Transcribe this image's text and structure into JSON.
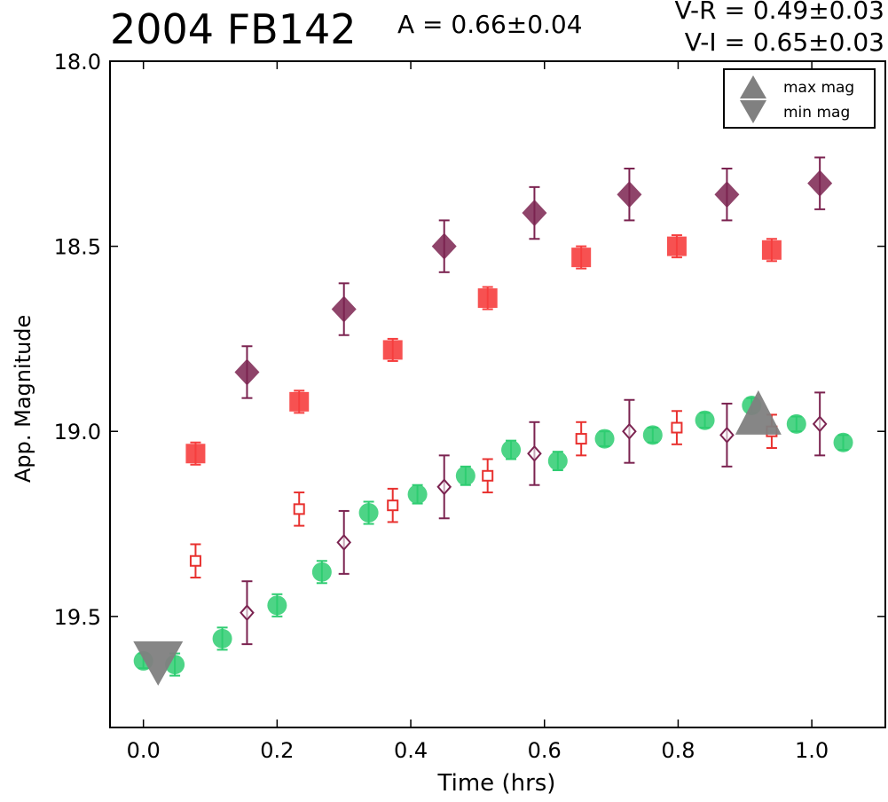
{
  "header": {
    "title": "2004 FB142",
    "amplitude": "A  = 0.66±0.04",
    "color_vr": "V-R = 0.49±0.03",
    "color_vi": "V-I  = 0.65±0.03"
  },
  "legend": {
    "max_label": "max mag",
    "min_label": "min mag",
    "marker_color": "#808080"
  },
  "chart_data": {
    "type": "scatter",
    "title": "2004 FB142",
    "xlabel": "Time (hrs)",
    "ylabel": "App. Magnitude",
    "xlim": [
      -0.05,
      1.11
    ],
    "ylim": [
      19.8,
      18.0
    ],
    "y_inverted": true,
    "xticks": [
      "0.0",
      "0.2",
      "0.4",
      "0.6",
      "0.8",
      "1.0"
    ],
    "yticks": [
      "18.0",
      "18.5",
      "19.0",
      "19.5"
    ],
    "grid": false,
    "legend_placement": "top-right",
    "series": [
      {
        "name": "",
        "marker": "circle-filled",
        "color": "#2ecc71",
        "x": [
          0.0,
          0.047,
          0.118,
          0.2,
          0.267,
          0.337,
          0.41,
          0.482,
          0.55,
          0.62,
          0.69,
          0.762,
          0.84,
          0.91,
          0.977,
          1.047
        ],
        "y": [
          19.62,
          19.63,
          19.56,
          19.47,
          19.38,
          19.22,
          19.17,
          19.12,
          19.05,
          19.08,
          19.02,
          19.01,
          18.97,
          18.93,
          18.98,
          19.03
        ],
        "err": [
          0.02,
          0.03,
          0.03,
          0.03,
          0.03,
          0.03,
          0.025,
          0.025,
          0.025,
          0.025,
          0.02,
          0.02,
          0.02,
          0.02,
          0.02,
          0.02
        ]
      },
      {
        "name": "",
        "marker": "square-open",
        "color": "#e8312f",
        "x": [
          0.078,
          0.233,
          0.373,
          0.515,
          0.655,
          0.798,
          0.94
        ],
        "y": [
          19.35,
          19.21,
          19.2,
          19.12,
          19.02,
          18.99,
          19.0
        ],
        "err": [
          0.045,
          0.045,
          0.045,
          0.045,
          0.045,
          0.045,
          0.045
        ]
      },
      {
        "name": "",
        "marker": "diamond-open",
        "color": "#7b2350",
        "x": [
          0.155,
          0.3,
          0.45,
          0.585,
          0.727,
          0.873,
          1.012
        ],
        "y": [
          19.49,
          19.3,
          19.15,
          19.06,
          19.0,
          19.01,
          18.98
        ],
        "err": [
          0.085,
          0.085,
          0.085,
          0.085,
          0.085,
          0.085,
          0.085
        ]
      },
      {
        "name": "",
        "marker": "square-filled",
        "color": "#f63e3e",
        "x": [
          0.078,
          0.233,
          0.373,
          0.515,
          0.655,
          0.798,
          0.94
        ],
        "y": [
          19.06,
          18.92,
          18.78,
          18.64,
          18.53,
          18.5,
          18.51
        ],
        "err": [
          0.03,
          0.03,
          0.03,
          0.03,
          0.03,
          0.03,
          0.03
        ]
      },
      {
        "name": "",
        "marker": "diamond-filled",
        "color": "#7b2350",
        "x": [
          0.155,
          0.3,
          0.45,
          0.585,
          0.727,
          0.873,
          1.012
        ],
        "y": [
          18.84,
          18.67,
          18.5,
          18.41,
          18.36,
          18.36,
          18.33
        ],
        "err": [
          0.07,
          0.07,
          0.07,
          0.07,
          0.07,
          0.07,
          0.07
        ]
      }
    ],
    "extrema": [
      {
        "kind": "max",
        "label": "max mag",
        "x": 0.92,
        "y": 18.98,
        "color": "#808080"
      },
      {
        "kind": "min",
        "label": "min mag",
        "x": 0.022,
        "y": 19.62,
        "color": "#808080"
      }
    ]
  }
}
